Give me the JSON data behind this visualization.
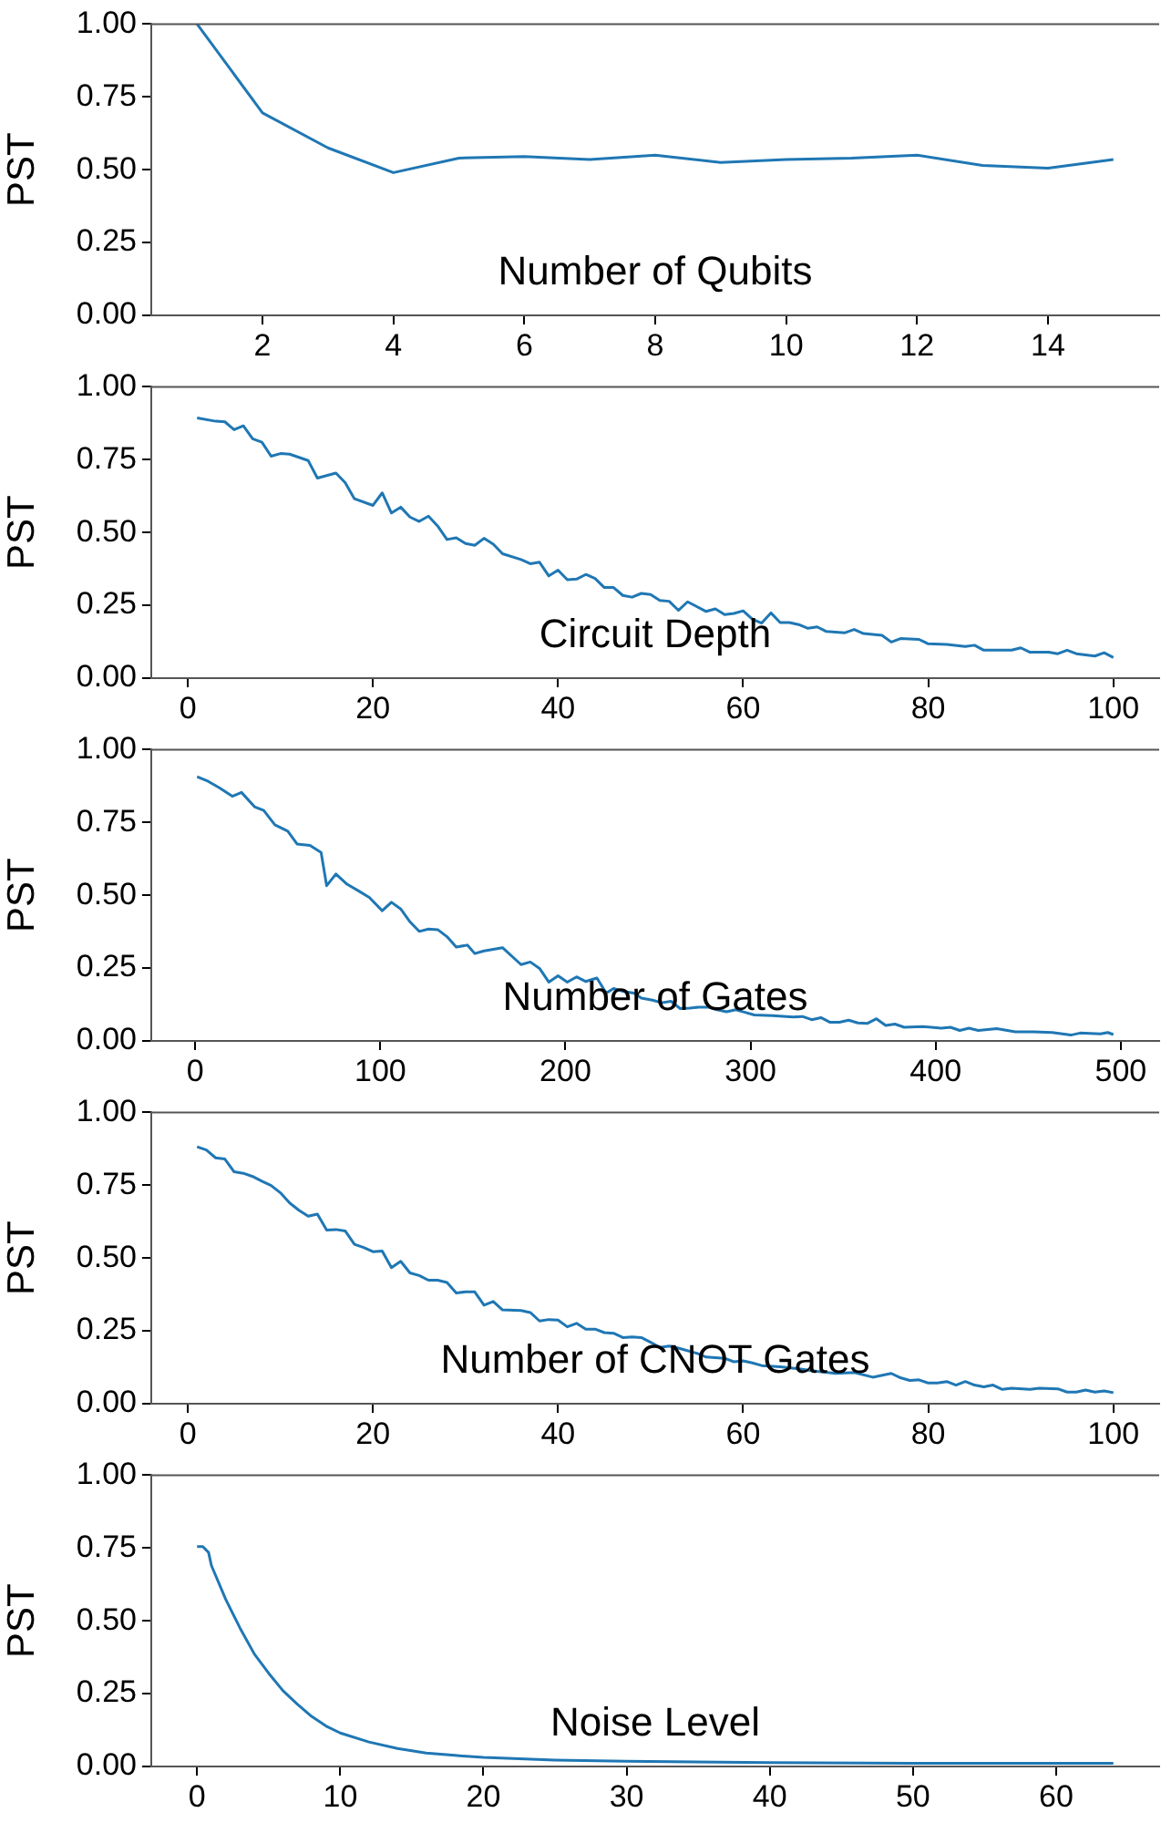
{
  "chart_data": [
    {
      "type": "line",
      "xlabel": "Number of Qubits",
      "ylabel": "PST",
      "color": "#1f77b4",
      "marker": "none",
      "grid": false,
      "x": [
        1,
        2,
        3,
        4,
        5,
        6,
        7,
        8,
        9,
        10,
        11,
        12,
        13,
        14,
        15
      ],
      "values": [
        1.0,
        0.695,
        0.575,
        0.49,
        0.54,
        0.545,
        0.535,
        0.55,
        0.525,
        0.535,
        0.54,
        0.55,
        0.515,
        0.505,
        0.535
      ],
      "xlim": [
        0.3,
        15.7
      ],
      "ylim": [
        0,
        1
      ],
      "xticks": [
        2,
        4,
        6,
        8,
        10,
        12,
        14
      ],
      "yticks": [
        {
          "value": 0,
          "label": "0.00"
        },
        {
          "value": 0.25,
          "label": "0.25"
        },
        {
          "value": 0.5,
          "label": "0.50"
        },
        {
          "value": 0.75,
          "label": "0.75"
        },
        {
          "value": 1,
          "label": "1.00"
        }
      ]
    },
    {
      "type": "line",
      "xlabel": "Circuit Depth",
      "ylabel": "PST",
      "color": "#1f77b4",
      "marker": "none",
      "grid": false,
      "x": [
        1,
        3,
        4,
        5,
        6,
        7,
        8,
        9,
        10,
        11,
        13,
        14,
        16,
        17,
        18,
        20,
        21,
        22,
        23,
        24,
        25,
        26,
        27,
        28,
        29,
        30,
        31,
        32,
        33,
        34,
        36,
        37,
        38,
        39,
        40,
        41,
        42,
        43,
        44,
        45,
        46,
        47,
        48,
        49,
        50,
        51,
        52,
        53,
        54,
        56,
        57,
        58,
        59,
        60,
        61,
        62,
        63,
        64,
        65,
        66,
        67,
        68,
        69,
        71,
        72,
        73,
        75,
        76,
        77,
        79,
        80,
        82,
        84,
        85,
        86,
        89,
        90,
        91,
        93,
        94,
        95,
        96,
        98,
        99,
        100
      ],
      "values": [
        0.893,
        0.882,
        0.88,
        0.853,
        0.866,
        0.822,
        0.81,
        0.762,
        0.771,
        0.769,
        0.747,
        0.687,
        0.704,
        0.671,
        0.616,
        0.593,
        0.636,
        0.567,
        0.587,
        0.553,
        0.538,
        0.556,
        0.522,
        0.476,
        0.482,
        0.462,
        0.456,
        0.48,
        0.46,
        0.427,
        0.407,
        0.393,
        0.398,
        0.351,
        0.371,
        0.338,
        0.34,
        0.356,
        0.342,
        0.311,
        0.311,
        0.284,
        0.278,
        0.291,
        0.287,
        0.267,
        0.264,
        0.233,
        0.262,
        0.229,
        0.238,
        0.218,
        0.222,
        0.231,
        0.202,
        0.189,
        0.224,
        0.191,
        0.191,
        0.184,
        0.171,
        0.176,
        0.16,
        0.156,
        0.167,
        0.153,
        0.147,
        0.124,
        0.136,
        0.133,
        0.118,
        0.116,
        0.109,
        0.113,
        0.096,
        0.096,
        0.104,
        0.089,
        0.089,
        0.084,
        0.096,
        0.084,
        0.076,
        0.087,
        0.071
      ],
      "xlim": [
        -3.95,
        104.95
      ],
      "ylim": [
        0,
        1
      ],
      "xticks": [
        0,
        20,
        40,
        60,
        80,
        100
      ],
      "yticks": [
        {
          "value": 0,
          "label": "0.00"
        },
        {
          "value": 0.25,
          "label": "0.25"
        },
        {
          "value": 0.5,
          "label": "0.50"
        },
        {
          "value": 0.75,
          "label": "0.75"
        },
        {
          "value": 1,
          "label": "1.00"
        }
      ]
    },
    {
      "type": "line",
      "xlabel": "Number of Gates",
      "ylabel": "PST",
      "color": "#1f77b4",
      "marker": "none",
      "grid": false,
      "x": [
        1,
        7,
        13,
        20,
        25,
        32,
        37,
        43,
        50,
        55,
        62,
        68,
        71,
        76,
        82,
        88,
        94,
        101,
        106,
        111,
        116,
        121,
        126,
        131,
        136,
        141,
        147,
        151,
        156,
        166,
        176,
        181,
        186,
        191,
        196,
        201,
        206,
        211,
        217,
        222,
        226,
        232,
        237,
        241,
        247,
        252,
        257,
        262,
        267,
        272,
        277,
        282,
        287,
        292,
        297,
        302,
        312,
        323,
        328,
        333,
        338,
        343,
        348,
        353,
        358,
        363,
        368,
        373,
        378,
        383,
        393,
        403,
        408,
        413,
        418,
        423,
        433,
        443,
        453,
        463,
        473,
        478,
        489,
        493,
        496
      ],
      "values": [
        0.907,
        0.891,
        0.869,
        0.84,
        0.853,
        0.804,
        0.791,
        0.742,
        0.72,
        0.676,
        0.671,
        0.647,
        0.533,
        0.573,
        0.538,
        0.516,
        0.493,
        0.447,
        0.476,
        0.453,
        0.409,
        0.376,
        0.384,
        0.382,
        0.358,
        0.322,
        0.329,
        0.3,
        0.309,
        0.32,
        0.262,
        0.271,
        0.249,
        0.202,
        0.224,
        0.202,
        0.22,
        0.204,
        0.216,
        0.164,
        0.18,
        0.169,
        0.164,
        0.147,
        0.14,
        0.131,
        0.136,
        0.111,
        0.113,
        0.116,
        0.116,
        0.107,
        0.1,
        0.107,
        0.098,
        0.089,
        0.087,
        0.082,
        0.084,
        0.073,
        0.08,
        0.064,
        0.064,
        0.071,
        0.062,
        0.06,
        0.076,
        0.053,
        0.058,
        0.047,
        0.049,
        0.044,
        0.047,
        0.036,
        0.044,
        0.036,
        0.042,
        0.031,
        0.031,
        0.029,
        0.02,
        0.027,
        0.024,
        0.029,
        0.022
      ],
      "xlim": [
        -23.75,
        520.75
      ],
      "ylim": [
        0,
        1
      ],
      "xticks": [
        0,
        100,
        200,
        300,
        400,
        500
      ],
      "yticks": [
        {
          "value": 0,
          "label": "0.00"
        },
        {
          "value": 0.25,
          "label": "0.25"
        },
        {
          "value": 0.5,
          "label": "0.50"
        },
        {
          "value": 0.75,
          "label": "0.75"
        },
        {
          "value": 1,
          "label": "1.00"
        }
      ]
    },
    {
      "type": "line",
      "xlabel": "Number of CNOT Gates",
      "ylabel": "PST",
      "color": "#1f77b4",
      "marker": "none",
      "grid": false,
      "x": [
        1,
        2,
        3,
        4,
        5,
        6,
        7,
        8,
        9,
        10,
        11,
        12,
        13,
        14,
        15,
        16,
        17,
        18,
        19,
        20,
        21,
        22,
        23,
        24,
        25,
        26,
        27,
        28,
        29,
        30,
        31,
        32,
        33,
        34,
        36,
        37,
        38,
        39,
        40,
        41,
        42,
        43,
        44,
        45,
        46,
        47,
        48,
        49,
        50,
        51,
        52,
        53,
        55,
        56,
        58,
        59,
        60,
        61,
        62,
        64,
        66,
        68,
        70,
        72,
        74,
        76,
        77,
        78,
        79,
        80,
        81,
        82,
        83,
        84,
        85,
        86,
        87,
        88,
        89,
        91,
        92,
        94,
        95,
        96,
        97,
        98,
        99,
        100
      ],
      "values": [
        0.882,
        0.871,
        0.844,
        0.84,
        0.796,
        0.791,
        0.78,
        0.764,
        0.749,
        0.724,
        0.689,
        0.664,
        0.644,
        0.651,
        0.596,
        0.598,
        0.593,
        0.547,
        0.536,
        0.522,
        0.524,
        0.467,
        0.489,
        0.449,
        0.44,
        0.424,
        0.424,
        0.416,
        0.38,
        0.384,
        0.384,
        0.338,
        0.351,
        0.322,
        0.32,
        0.313,
        0.284,
        0.289,
        0.287,
        0.264,
        0.276,
        0.256,
        0.256,
        0.244,
        0.242,
        0.227,
        0.229,
        0.227,
        0.211,
        0.193,
        0.198,
        0.191,
        0.173,
        0.16,
        0.156,
        0.144,
        0.147,
        0.14,
        0.131,
        0.127,
        0.12,
        0.111,
        0.104,
        0.107,
        0.091,
        0.104,
        0.089,
        0.08,
        0.082,
        0.071,
        0.071,
        0.076,
        0.064,
        0.076,
        0.064,
        0.058,
        0.064,
        0.049,
        0.053,
        0.049,
        0.053,
        0.051,
        0.04,
        0.04,
        0.047,
        0.04,
        0.044,
        0.038
      ],
      "xlim": [
        -3.95,
        104.95
      ],
      "ylim": [
        0,
        1
      ],
      "xticks": [
        0,
        20,
        40,
        60,
        80,
        100
      ],
      "yticks": [
        {
          "value": 0,
          "label": "0.00"
        },
        {
          "value": 0.25,
          "label": "0.25"
        },
        {
          "value": 0.5,
          "label": "0.50"
        },
        {
          "value": 0.75,
          "label": "0.75"
        },
        {
          "value": 1,
          "label": "1.00"
        }
      ]
    },
    {
      "type": "line",
      "xlabel": "Noise Level",
      "ylabel": "PST",
      "color": "#1f77b4",
      "marker": "none",
      "grid": false,
      "x": [
        0,
        0.4,
        0.8,
        1,
        2,
        3,
        4,
        5,
        6,
        7,
        8,
        9,
        10,
        12,
        14,
        16,
        18,
        20,
        25,
        30,
        40,
        50,
        64
      ],
      "values": [
        0.755,
        0.755,
        0.735,
        0.69,
        0.574,
        0.475,
        0.386,
        0.32,
        0.26,
        0.214,
        0.172,
        0.139,
        0.115,
        0.084,
        0.062,
        0.046,
        0.038,
        0.031,
        0.022,
        0.018,
        0.013,
        0.011,
        0.011
      ],
      "xlim": [
        -3.2,
        67.2
      ],
      "ylim": [
        0,
        1
      ],
      "xticks": [
        0,
        10,
        20,
        30,
        40,
        50,
        60
      ],
      "yticks": [
        {
          "value": 0,
          "label": "0.00"
        },
        {
          "value": 0.25,
          "label": "0.25"
        },
        {
          "value": 0.5,
          "label": "0.50"
        },
        {
          "value": 0.75,
          "label": "0.75"
        },
        {
          "value": 1,
          "label": "1.00"
        }
      ]
    }
  ]
}
